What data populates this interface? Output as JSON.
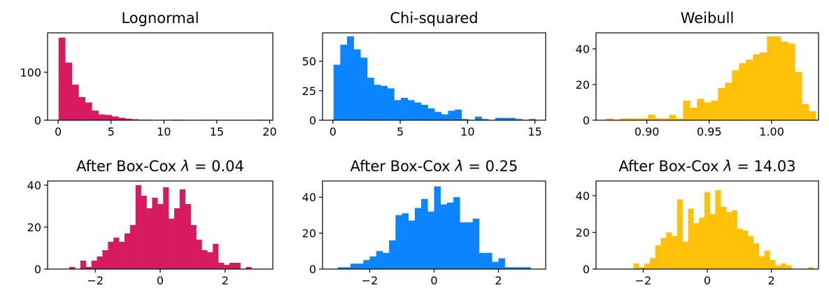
{
  "chart_data": [
    {
      "type": "histogram",
      "title": "Lognormal",
      "color": "#D81B60",
      "xlim": [
        -1.0,
        20.3
      ],
      "ylim": [
        0,
        182
      ],
      "xticks": [
        0,
        5,
        10,
        15,
        20
      ],
      "xtick_labels": [
        "0",
        "5",
        "10",
        "15",
        "20"
      ],
      "yticks": [
        0,
        100
      ],
      "ytick_labels": [
        "0",
        "100"
      ],
      "bin_edges": [
        0.04,
        0.67,
        1.3,
        1.93,
        2.56,
        3.19,
        3.82,
        4.45,
        5.08,
        5.71,
        6.34,
        6.97,
        7.6,
        8.23,
        8.86,
        9.49,
        10.12,
        10.75,
        11.38,
        12.01,
        12.64,
        13.27,
        13.9,
        14.53,
        15.16,
        15.79,
        16.42,
        17.05,
        17.68,
        18.31,
        18.94,
        19.57
      ],
      "counts": [
        172,
        120,
        74,
        48,
        37,
        20,
        12,
        11,
        8,
        5,
        3,
        2,
        1,
        1,
        0,
        0,
        0,
        1,
        1,
        0,
        0,
        0,
        1,
        0,
        0,
        0,
        0,
        0,
        0,
        0,
        1
      ]
    },
    {
      "type": "histogram",
      "title": "Chi-squared",
      "color": "#0A84FF",
      "xlim": [
        -0.77,
        15.8
      ],
      "ylim": [
        0,
        74
      ],
      "xticks": [
        0,
        5,
        10,
        15
      ],
      "xtick_labels": [
        "0",
        "5",
        "10",
        "15"
      ],
      "yticks": [
        0,
        25,
        50
      ],
      "ytick_labels": [
        "0",
        "25",
        "50"
      ],
      "bin_edges": [
        0.05,
        0.55,
        1.05,
        1.55,
        2.05,
        2.55,
        3.05,
        3.55,
        4.05,
        4.55,
        5.05,
        5.55,
        6.05,
        6.55,
        7.05,
        7.55,
        8.05,
        8.55,
        9.05,
        9.55,
        10.05,
        10.55,
        11.05,
        11.55,
        12.05,
        12.55,
        13.05,
        13.55,
        14.05,
        14.55,
        15.05
      ],
      "counts": [
        47,
        64,
        71,
        60,
        53,
        36,
        30,
        29,
        27,
        17,
        19,
        17,
        15,
        13,
        10,
        7,
        5,
        8,
        9,
        1,
        0,
        3,
        1,
        0,
        2,
        2,
        2,
        1,
        0,
        1
      ]
    },
    {
      "type": "histogram",
      "title": "Weibull",
      "color": "#FFC107",
      "xlim": [
        0.8593,
        1.0375
      ],
      "ylim": [
        0,
        49
      ],
      "xticks": [
        0.9,
        0.95,
        1.0
      ],
      "xtick_labels": [
        "0.90",
        "0.95",
        "1.00"
      ],
      "yticks": [
        0,
        20,
        40
      ],
      "ytick_labels": [
        "0",
        "20",
        "40"
      ],
      "bin_edges": [
        0.8674,
        0.873,
        0.8786,
        0.8842,
        0.8898,
        0.8954,
        0.901,
        0.9066,
        0.9122,
        0.9178,
        0.9234,
        0.929,
        0.9346,
        0.9402,
        0.9458,
        0.9514,
        0.957,
        0.9626,
        0.9682,
        0.9738,
        0.9794,
        0.985,
        0.9906,
        0.9962,
        1.0018,
        1.0074,
        1.013,
        1.0186,
        1.0242,
        1.0298,
        1.0354
      ],
      "counts": [
        1,
        0,
        1,
        1,
        1,
        1,
        3,
        1,
        1,
        3,
        1,
        11,
        7,
        12,
        10,
        11,
        18,
        21,
        28,
        32,
        34,
        37,
        38,
        47,
        47,
        44,
        43,
        27,
        9,
        5
      ]
    },
    {
      "type": "histogram",
      "title": "After Box-Cox λ = 0.04",
      "title_prefix": "After Box-Cox ",
      "title_lambda": "λ",
      "title_suffix": " = 0.04",
      "color": "#D81B60",
      "xlim": [
        -3.47,
        3.47
      ],
      "ylim": [
        0,
        42
      ],
      "xticks": [
        -2,
        0,
        2
      ],
      "xtick_labels": [
        "−2",
        "0",
        "2"
      ],
      "yticks": [
        0,
        20,
        40
      ],
      "ytick_labels": [
        "0",
        "20",
        "40"
      ],
      "bin_edges": [
        -2.97,
        -2.8,
        -2.63,
        -2.46,
        -2.29,
        -2.12,
        -1.95,
        -1.78,
        -1.61,
        -1.44,
        -1.27,
        -1.1,
        -0.93,
        -0.76,
        -0.59,
        -0.42,
        -0.25,
        -0.08,
        0.09,
        0.26,
        0.43,
        0.6,
        0.77,
        0.94,
        1.11,
        1.28,
        1.45,
        1.62,
        1.79,
        1.96,
        2.13,
        2.3,
        2.47,
        2.64,
        2.81,
        2.98
      ],
      "counts": [
        0,
        1,
        0,
        4,
        1,
        4,
        6,
        9,
        13,
        15,
        13,
        17,
        21,
        40,
        35,
        29,
        34,
        31,
        39,
        24,
        29,
        38,
        31,
        21,
        14,
        9,
        8,
        12,
        3,
        2,
        3,
        3,
        0,
        1,
        0
      ]
    },
    {
      "type": "histogram",
      "title": "After Box-Cox λ = 0.25",
      "title_prefix": "After Box-Cox ",
      "title_lambda": "λ",
      "title_suffix": " = 0.25",
      "color": "#0A84FF",
      "xlim": [
        -3.47,
        3.47
      ],
      "ylim": [
        0,
        49
      ],
      "xticks": [
        -2,
        0,
        2
      ],
      "xtick_labels": [
        "−2",
        "0",
        "2"
      ],
      "yticks": [
        0,
        20,
        40
      ],
      "ytick_labels": [
        "0",
        "20",
        "40"
      ],
      "bin_edges": [
        -3.0,
        -2.8,
        -2.6,
        -2.4,
        -2.2,
        -2.0,
        -1.8,
        -1.6,
        -1.4,
        -1.2,
        -1.0,
        -0.8,
        -0.6,
        -0.4,
        -0.2,
        0.0,
        0.2,
        0.4,
        0.6,
        0.8,
        1.0,
        1.2,
        1.4,
        1.6,
        1.8,
        2.0,
        2.2,
        2.4,
        2.6,
        2.8,
        3.0
      ],
      "counts": [
        1,
        1,
        3,
        3,
        5,
        7,
        10,
        9,
        16,
        30,
        31,
        27,
        34,
        39,
        32,
        46,
        36,
        37,
        40,
        26,
        26,
        28,
        9,
        9,
        4,
        6,
        1,
        1,
        1,
        1
      ]
    },
    {
      "type": "histogram",
      "title": "After Box-Cox λ = 14.03",
      "title_prefix": "After Box-Cox ",
      "title_lambda": "λ",
      "title_suffix": " = 14.03",
      "color": "#FFC107",
      "xlim": [
        -3.47,
        3.47
      ],
      "ylim": [
        0,
        48
      ],
      "xticks": [
        -2,
        0,
        2
      ],
      "xtick_labels": [
        "−2",
        "0",
        "2"
      ],
      "yticks": [
        0,
        20,
        40
      ],
      "ytick_labels": [
        "0",
        "20",
        "40"
      ],
      "bin_edges": [
        -3.15,
        -2.98,
        -2.81,
        -2.64,
        -2.47,
        -2.3,
        -2.13,
        -1.96,
        -1.79,
        -1.62,
        -1.45,
        -1.28,
        -1.11,
        -0.94,
        -0.77,
        -0.6,
        -0.43,
        -0.26,
        -0.09,
        0.08,
        0.25,
        0.42,
        0.59,
        0.76,
        0.93,
        1.1,
        1.27,
        1.44,
        1.61,
        1.78,
        1.95,
        2.12,
        2.29,
        2.46,
        2.63,
        2.8,
        2.97,
        3.14,
        3.31
      ],
      "counts": [
        0,
        0,
        0,
        0,
        0,
        3,
        1,
        3,
        6,
        13,
        17,
        20,
        18,
        38,
        15,
        33,
        25,
        28,
        42,
        30,
        43,
        34,
        31,
        32,
        22,
        21,
        18,
        14,
        7,
        10,
        5,
        2,
        3,
        2,
        0,
        0,
        0,
        1
      ]
    }
  ]
}
